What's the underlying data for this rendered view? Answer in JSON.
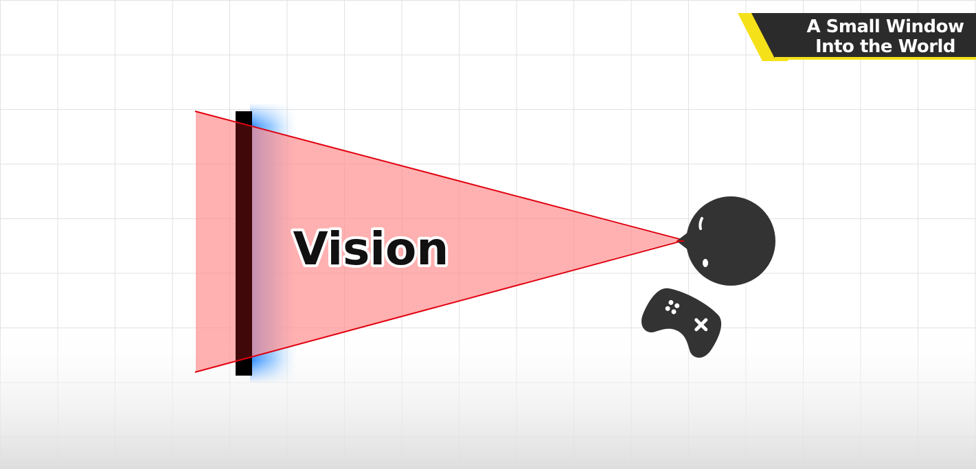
{
  "title": {
    "line1": "A Small Window",
    "line2": "Into the World"
  },
  "diagram": {
    "vision_label": "Vision",
    "viewer_icon": "eye-ball-icon",
    "controller_icon": "gamepad-icon"
  },
  "colors": {
    "background": "#ffffff",
    "grid": "#e3e3e3",
    "vision_fill": "#ffb0b0",
    "vision_line": "#e0000e",
    "wall": "#000000",
    "wall_glow": "#3d9bff",
    "viewer": "#333333",
    "badge_dark": "#2b2b2b",
    "badge_accent": "#f5e11a",
    "label_text": "#111111"
  }
}
